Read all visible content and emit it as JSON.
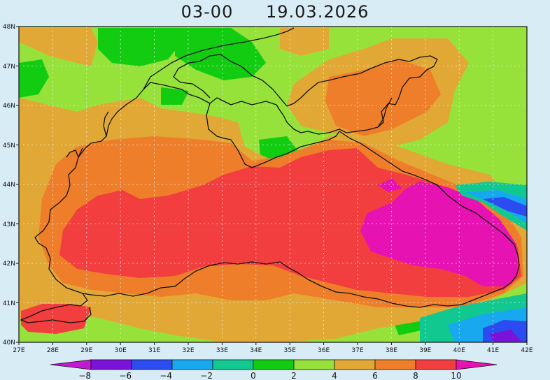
{
  "title": {
    "time": "03-00",
    "date": "19.03.2026"
  },
  "map": {
    "lon_range": [
      27,
      42
    ],
    "lat_range": [
      40,
      48
    ],
    "lon_ticks": [
      "27E",
      "28E",
      "29E",
      "30E",
      "31E",
      "32E",
      "33E",
      "34E",
      "35E",
      "36E",
      "37E",
      "38E",
      "39E",
      "40E",
      "41E",
      "42E"
    ],
    "lat_ticks": [
      "40N",
      "41N",
      "42N",
      "43N",
      "44N",
      "45N",
      "46N",
      "47N",
      "48N"
    ],
    "grid": true,
    "grid_style": "dotted"
  },
  "colorbar": {
    "labels": [
      "-8",
      "-6",
      "-4",
      "-2",
      "0",
      "2",
      "4",
      "6",
      "8",
      "10"
    ],
    "colors": {
      "lt_-8": "#c01ad0",
      "-8_-6": "#7a12d8",
      "-6_-4": "#2a4cf0",
      "-4_-2": "#18a8f0",
      "-2_0": "#10c890",
      "0_2": "#12cc12",
      "2_4": "#96e23a",
      "4_6": "#e2a836",
      "6_8": "#ee7e2a",
      "8_10": "#f23e3e",
      "gt_10": "#e612b2"
    }
  },
  "icons": {
    "colorbar_left": "triangle-left",
    "colorbar_right": "triangle-right"
  }
}
